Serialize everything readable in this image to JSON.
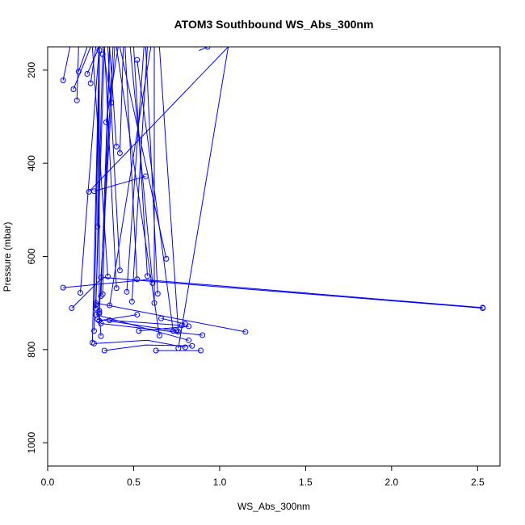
{
  "chart_data": {
    "type": "line",
    "title": "ATOM3 Southbound WS_Abs_300nm",
    "xlabel": "WS_Abs_300nm",
    "ylabel": "Pressure (mbar)",
    "xlim": [
      0,
      2.63
    ],
    "ylim": [
      1050,
      150
    ],
    "y_reversed": true,
    "x_ticks": [
      0.0,
      0.5,
      1.0,
      1.5,
      2.0,
      2.5
    ],
    "x_tick_labels": [
      "0.0",
      "0.5",
      "1.0",
      "1.5",
      "2.0",
      "2.5"
    ],
    "y_ticks": [
      200,
      400,
      600,
      800,
      1000
    ],
    "y_tick_labels": [
      "200",
      "400",
      "600",
      "800",
      "1000"
    ],
    "series_color": "#0000ff",
    "grid": false,
    "legend": "none",
    "series": [
      {
        "points": [
          [
            0.09,
            222
          ],
          [
            0.13,
            150
          ]
        ]
      },
      {
        "points": [
          [
            0.15,
            241
          ],
          [
            0.25,
            150
          ]
        ]
      },
      {
        "points": [
          [
            0.17,
            265
          ],
          [
            0.18,
            150
          ]
        ]
      },
      {
        "points": [
          [
            0.18,
            203
          ],
          [
            0.23,
            150
          ]
        ]
      },
      {
        "points": [
          [
            0.23,
            208
          ],
          [
            0.3,
            150
          ]
        ]
      },
      {
        "points": [
          [
            0.25,
            228
          ],
          [
            0.28,
            150
          ]
        ]
      },
      {
        "points": [
          [
            0.3,
            157
          ],
          [
            0.27,
            760
          ]
        ]
      },
      {
        "points": [
          [
            0.32,
            166
          ],
          [
            0.28,
            712
          ]
        ]
      },
      {
        "points": [
          [
            0.37,
            270
          ],
          [
            0.32,
            150
          ]
        ]
      },
      {
        "points": [
          [
            0.34,
            312
          ],
          [
            0.41,
            150
          ]
        ]
      },
      {
        "points": [
          [
            0.4,
            364
          ],
          [
            0.36,
            150
          ]
        ]
      },
      {
        "points": [
          [
            0.42,
            378
          ],
          [
            0.44,
            150
          ]
        ]
      },
      {
        "points": [
          [
            0.52,
            178
          ],
          [
            0.73,
            760
          ]
        ]
      },
      {
        "points": [
          [
            0.93,
            150
          ],
          [
            0.88,
            158
          ]
        ]
      },
      {
        "points": [
          [
            0.57,
            428
          ],
          [
            0.27,
            460
          ]
        ]
      },
      {
        "points": [
          [
            0.24,
            461
          ],
          [
            1.05,
            150
          ]
        ]
      },
      {
        "points": [
          [
            0.29,
            536
          ],
          [
            0.3,
            150
          ]
        ]
      },
      {
        "points": [
          [
            0.69,
            605
          ],
          [
            0.42,
            150
          ]
        ]
      },
      {
        "points": [
          [
            0.42,
            630
          ],
          [
            0.35,
            150
          ]
        ]
      },
      {
        "points": [
          [
            0.35,
            643
          ],
          [
            0.26,
            150
          ]
        ]
      },
      {
        "points": [
          [
            0.31,
            645
          ],
          [
            0.39,
            150
          ]
        ]
      },
      {
        "points": [
          [
            0.52,
            649
          ],
          [
            0.45,
            150
          ]
        ]
      },
      {
        "points": [
          [
            0.58,
            642
          ],
          [
            0.5,
            150
          ]
        ]
      },
      {
        "points": [
          [
            0.61,
            657
          ],
          [
            0.48,
            150
          ]
        ]
      },
      {
        "points": [
          [
            0.4,
            668
          ],
          [
            0.33,
            150
          ]
        ]
      },
      {
        "points": [
          [
            0.09,
            667
          ],
          [
            0.57,
            650
          ],
          [
            2.53,
            710
          ]
        ]
      },
      {
        "points": [
          [
            0.14,
            711
          ],
          [
            0.32,
            645
          ],
          [
            2.53,
            711
          ]
        ]
      },
      {
        "points": [
          [
            0.31,
            685
          ],
          [
            0.36,
            150
          ]
        ]
      },
      {
        "points": [
          [
            0.32,
            681
          ],
          [
            0.36,
            150
          ]
        ]
      },
      {
        "points": [
          [
            0.19,
            678
          ],
          [
            0.3,
            150
          ]
        ]
      },
      {
        "points": [
          [
            0.46,
            676
          ],
          [
            0.56,
            150
          ]
        ]
      },
      {
        "points": [
          [
            0.49,
            697
          ],
          [
            0.58,
            150
          ]
        ]
      },
      {
        "points": [
          [
            0.62,
            700
          ],
          [
            0.62,
            150
          ]
        ]
      },
      {
        "points": [
          [
            0.64,
            680
          ],
          [
            0.57,
            150
          ]
        ]
      },
      {
        "points": [
          [
            0.36,
            705
          ],
          [
            0.6,
            150
          ]
        ]
      },
      {
        "points": [
          [
            0.28,
            704
          ],
          [
            0.33,
            150
          ]
        ]
      },
      {
        "points": [
          [
            0.3,
            716
          ],
          [
            0.3,
            150
          ]
        ]
      },
      {
        "points": [
          [
            0.3,
            723
          ],
          [
            0.38,
            150
          ]
        ]
      },
      {
        "points": [
          [
            0.66,
            733
          ],
          [
            0.8,
            745
          ]
        ]
      },
      {
        "points": [
          [
            0.29,
            735
          ],
          [
            0.75,
            760
          ]
        ]
      },
      {
        "points": [
          [
            0.36,
            737
          ],
          [
            0.78,
            748
          ]
        ]
      },
      {
        "points": [
          [
            0.31,
            744
          ],
          [
            0.9,
            769
          ]
        ]
      },
      {
        "points": [
          [
            0.53,
            760
          ],
          [
            0.82,
            750
          ]
        ]
      },
      {
        "points": [
          [
            0.65,
            770
          ],
          [
            0.4,
            150
          ]
        ]
      },
      {
        "points": [
          [
            0.76,
            762
          ],
          [
            0.65,
            150
          ]
        ]
      },
      {
        "points": [
          [
            1.15,
            762
          ],
          [
            0.28,
            700
          ]
        ]
      },
      {
        "points": [
          [
            0.31,
            771
          ],
          [
            0.3,
            720
          ]
        ]
      },
      {
        "points": [
          [
            0.27,
            787
          ],
          [
            0.58,
            780
          ],
          [
            0.8,
            795
          ]
        ]
      },
      {
        "points": [
          [
            0.26,
            785
          ],
          [
            0.3,
            150
          ]
        ]
      },
      {
        "points": [
          [
            0.33,
            802
          ],
          [
            0.57,
            790
          ],
          [
            0.84,
            792
          ]
        ]
      },
      {
        "points": [
          [
            0.63,
            802
          ],
          [
            0.89,
            802
          ]
        ]
      },
      {
        "points": [
          [
            0.76,
            797
          ],
          [
            1.05,
            150
          ]
        ]
      },
      {
        "points": [
          [
            0.28,
            725
          ],
          [
            0.82,
            780
          ]
        ]
      },
      {
        "points": [
          [
            0.3,
            738
          ],
          [
            0.52,
            725
          ]
        ]
      }
    ]
  }
}
